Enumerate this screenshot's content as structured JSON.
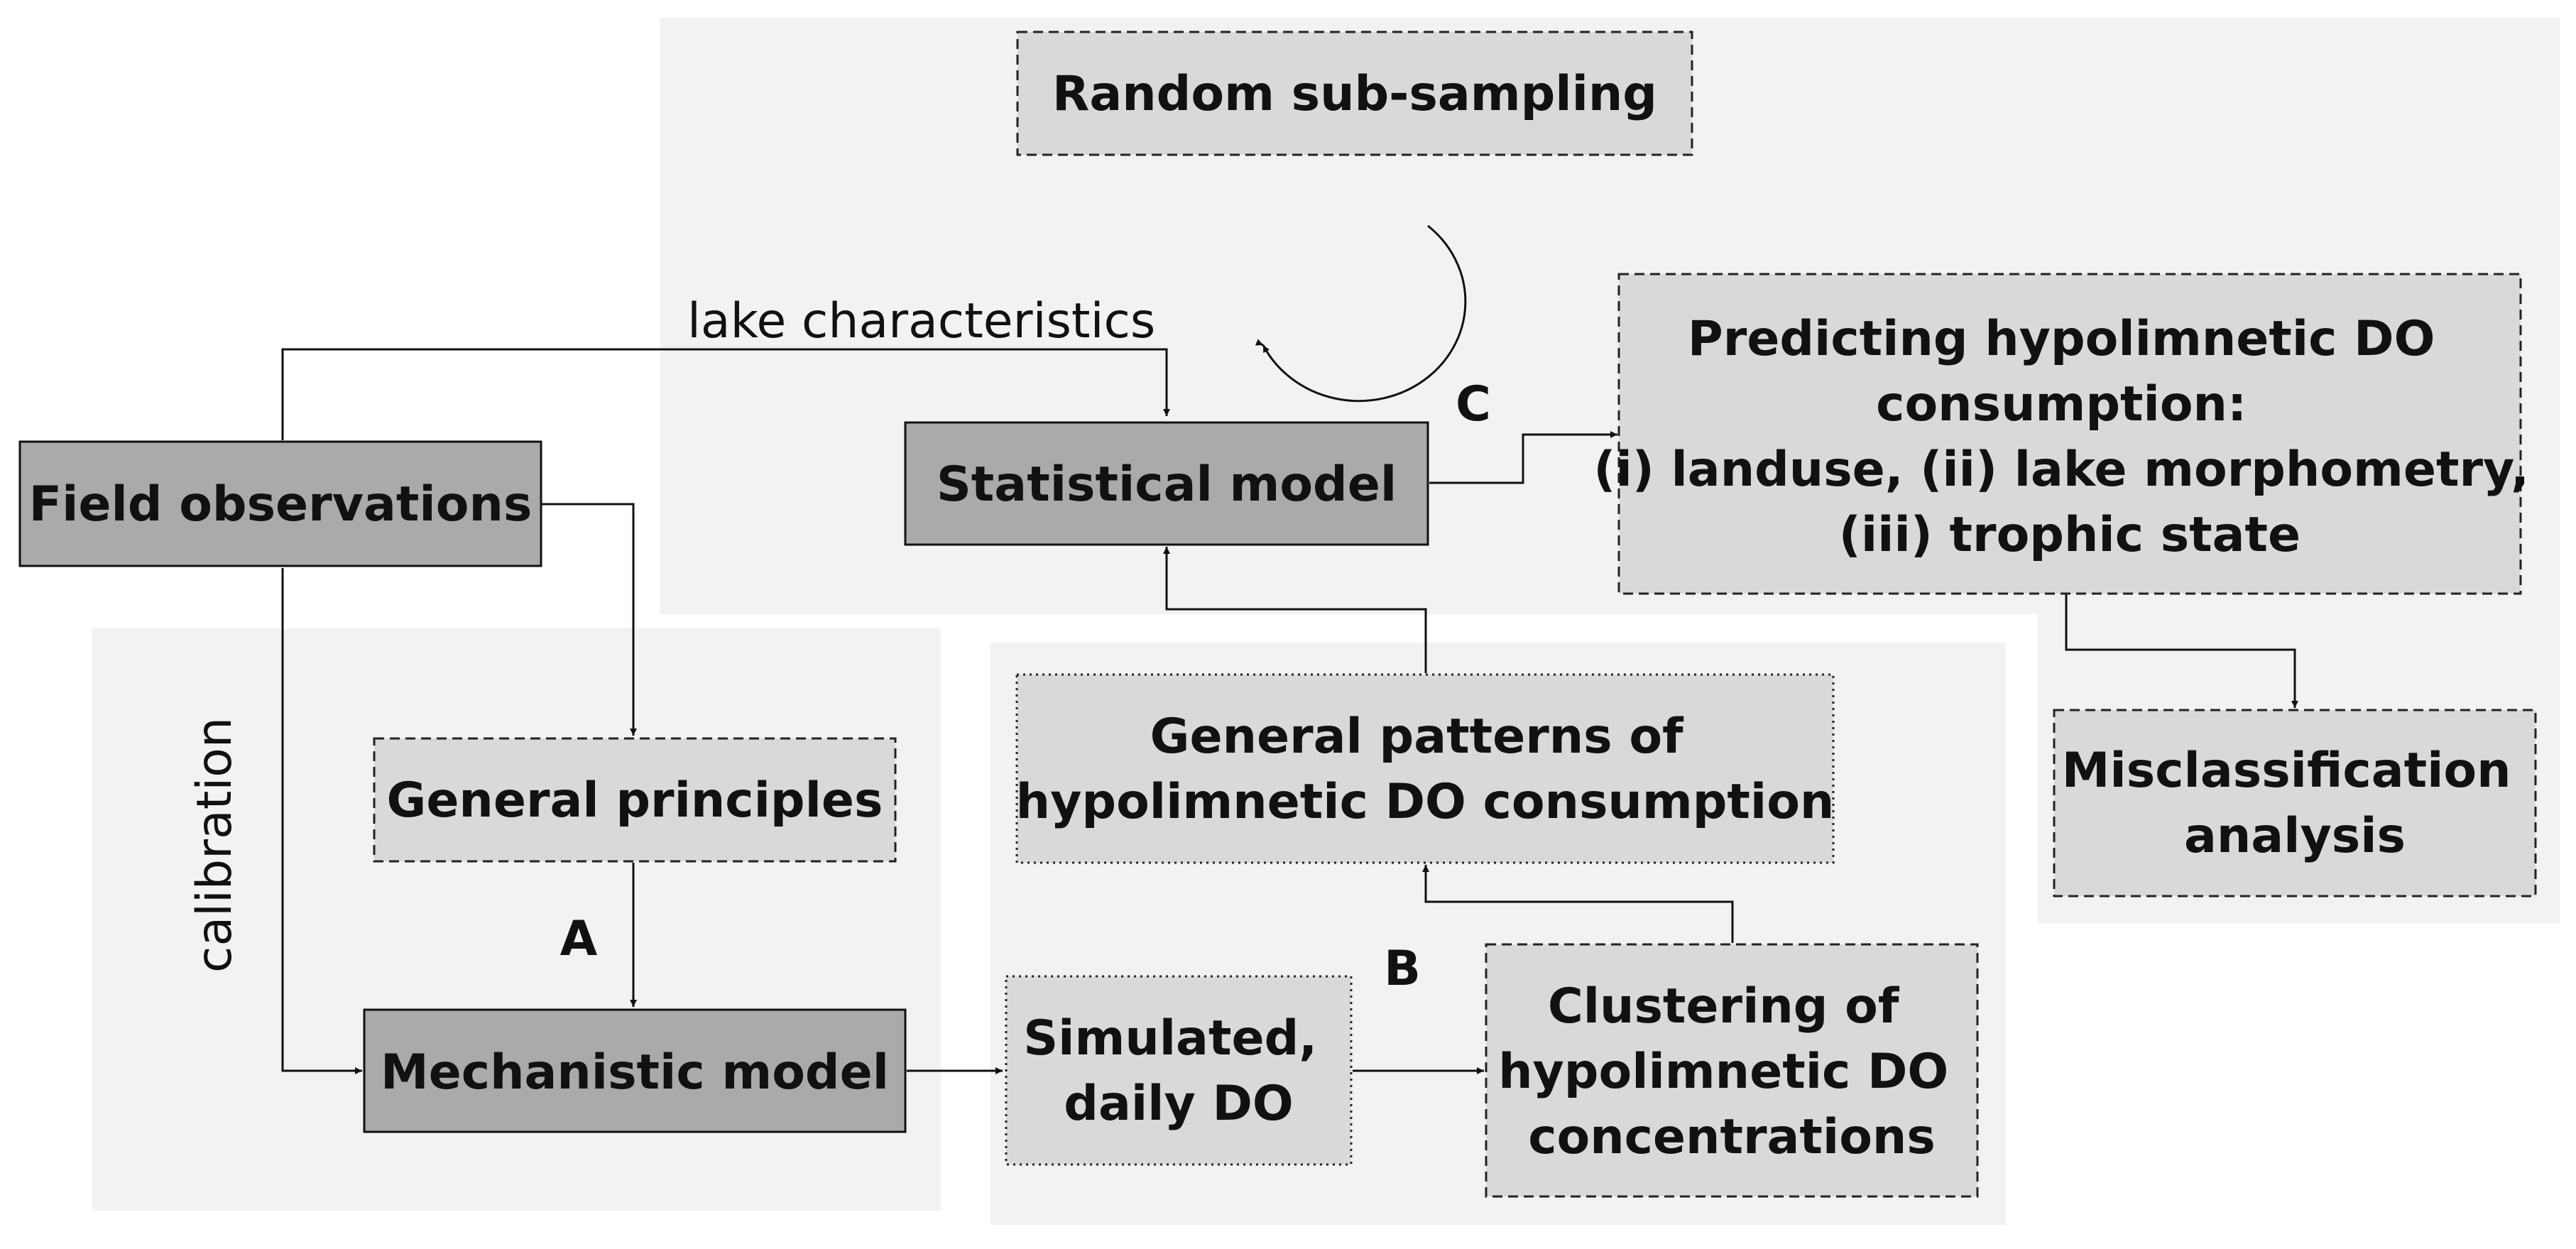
{
  "nodes": {
    "random_subsampling": {
      "lines": [
        "Random sub-sampling"
      ]
    },
    "field_observations": {
      "lines": [
        "Field observations"
      ]
    },
    "statistical_model": {
      "lines": [
        "Statistical model"
      ]
    },
    "predicting": {
      "lines": [
        "Predicting hypolimnetic DO",
        "consumption:",
        "(i) landuse, (ii) lake morphometry,",
        "(iii) trophic state"
      ]
    },
    "general_principles": {
      "lines": [
        "General principles"
      ]
    },
    "general_patterns": {
      "lines": [
        "General patterns of",
        "hypolimnetic DO consumption"
      ]
    },
    "misclassification": {
      "lines": [
        "Misclassification",
        "analysis"
      ]
    },
    "mechanistic_model": {
      "lines": [
        "Mechanistic model"
      ]
    },
    "simulated_do": {
      "lines": [
        "Simulated,",
        "daily DO"
      ]
    },
    "clustering": {
      "lines": [
        "Clustering of",
        "hypolimnetic DO",
        "concentrations"
      ]
    }
  },
  "edge_labels": {
    "lake_characteristics": "lake characteristics",
    "calibration": "calibration"
  },
  "stage_labels": {
    "a": "A",
    "b": "B",
    "c": "C"
  }
}
